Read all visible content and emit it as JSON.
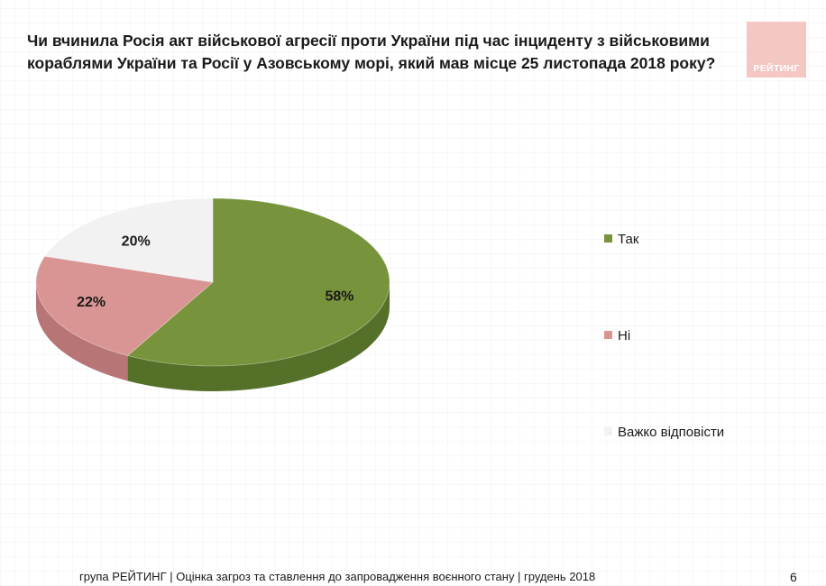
{
  "logo": {
    "text": "РЕЙТИНГ",
    "color": "#f4c7c3"
  },
  "footer": {
    "text": "група РЕЙТИНГ | Оцінка загроз та ставлення до запровадження воєнного стану | грудень 2018",
    "page_number": "6"
  },
  "chart_data": {
    "type": "pie",
    "title": "Чи вчинила Росія акт військової агресії проти України під час інциденту з військовими кораблями України та Росії у Азовському морі, який мав місце 25 листопада 2018 року?",
    "slices": [
      {
        "label": "Так",
        "value": 58,
        "value_label": "58%",
        "color": "#77933c",
        "side_color": "#557029"
      },
      {
        "label": "Ні",
        "value": 22,
        "value_label": "22%",
        "color": "#d99594",
        "side_color": "#b77675"
      },
      {
        "label": "Важко відповісти",
        "value": 20,
        "value_label": "20%",
        "color": "#f2f2f2",
        "side_color": "#d4d4d4"
      }
    ],
    "legend_position": "right",
    "style": "3d"
  }
}
